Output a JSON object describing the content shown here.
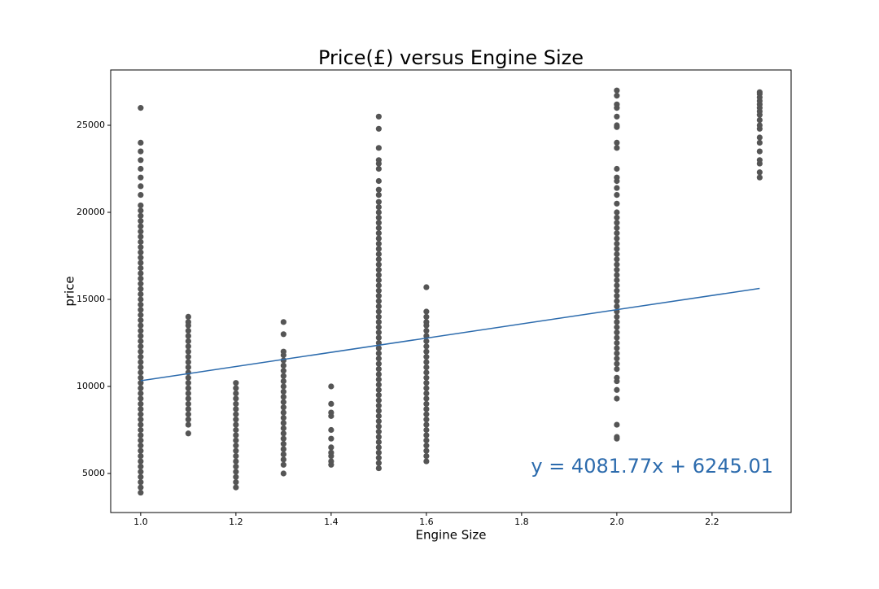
{
  "chart_data": {
    "type": "scatter",
    "title": "Price(£) versus Engine Size",
    "xlabel": "Engine Size",
    "ylabel": "price",
    "color": "#555555",
    "xlim": [
      0.937,
      2.366
    ],
    "ylim": [
      2757,
      28178
    ],
    "xticks": [
      {
        "value": 1,
        "label": "1.0"
      },
      1.2,
      1.4,
      1.6,
      1.8,
      {
        "value": 2,
        "label": "2.0"
      },
      2.2
    ],
    "yticks": [
      5000,
      10000,
      15000,
      20000,
      25000
    ],
    "grid": false,
    "series": [
      {
        "x": [
          1,
          1,
          1,
          1,
          1,
          1,
          1,
          1,
          1,
          1,
          1,
          1,
          1,
          1,
          1,
          1,
          1,
          1,
          1,
          1,
          1,
          1,
          1,
          1,
          1,
          1,
          1,
          1,
          1,
          1,
          1,
          1,
          1,
          1,
          1,
          1,
          1,
          1,
          1,
          1,
          1,
          1,
          1,
          1,
          1,
          1,
          1,
          1,
          1,
          1,
          1,
          1,
          1,
          1,
          1,
          1,
          1,
          1,
          1,
          1,
          1,
          1,
          1,
          1
        ],
        "values": [
          3900,
          4200,
          4500,
          4800,
          5100,
          5400,
          5700,
          6000,
          6300,
          6600,
          6900,
          7200,
          7500,
          7800,
          8100,
          8400,
          8700,
          9000,
          9300,
          9600,
          9900,
          10200,
          10500,
          10800,
          11100,
          11400,
          11700,
          12000,
          12300,
          12600,
          12900,
          13200,
          13500,
          13800,
          14100,
          14400,
          14700,
          15000,
          15300,
          15600,
          15900,
          16200,
          16500,
          16800,
          17100,
          17400,
          17700,
          18000,
          18300,
          18600,
          18900,
          19200,
          19500,
          19800,
          20100,
          20400,
          21000,
          21500,
          22000,
          22500,
          23000,
          23500,
          24000,
          26000
        ]
      },
      {
        "x": [
          1.1,
          1.1,
          1.1,
          1.1,
          1.1,
          1.1,
          1.1,
          1.1,
          1.1,
          1.1,
          1.1,
          1.1,
          1.1,
          1.1,
          1.1,
          1.1,
          1.1,
          1.1,
          1.1,
          1.1,
          1.1,
          1.1,
          1.1
        ],
        "values": [
          7300,
          7800,
          8100,
          8400,
          8700,
          9000,
          9300,
          9600,
          9900,
          10200,
          10500,
          10800,
          11100,
          11400,
          11700,
          12000,
          12300,
          12600,
          12900,
          13200,
          13500,
          13700,
          14000
        ]
      },
      {
        "x": [
          1.2,
          1.2,
          1.2,
          1.2,
          1.2,
          1.2,
          1.2,
          1.2,
          1.2,
          1.2,
          1.2,
          1.2,
          1.2,
          1.2,
          1.2,
          1.2,
          1.2,
          1.2,
          1.2,
          1.2,
          1.2
        ],
        "values": [
          4200,
          4500,
          4800,
          5100,
          5400,
          5700,
          6000,
          6300,
          6600,
          6900,
          7200,
          7500,
          7800,
          8100,
          8400,
          8700,
          9000,
          9300,
          9600,
          9900,
          10200
        ]
      },
      {
        "x": [
          1.3,
          1.3,
          1.3,
          1.3,
          1.3,
          1.3,
          1.3,
          1.3,
          1.3,
          1.3,
          1.3,
          1.3,
          1.3,
          1.3,
          1.3,
          1.3,
          1.3,
          1.3,
          1.3,
          1.3,
          1.3,
          1.3,
          1.3,
          1.3,
          1.3,
          1.3
        ],
        "values": [
          5000,
          5500,
          5800,
          6100,
          6400,
          6700,
          7000,
          7300,
          7600,
          7900,
          8200,
          8500,
          8800,
          9100,
          9400,
          9700,
          10000,
          10300,
          10600,
          10900,
          11200,
          11500,
          11800,
          12000,
          13000,
          13700
        ]
      },
      {
        "x": [
          1.4,
          1.4,
          1.4,
          1.4,
          1.4,
          1.4,
          1.4,
          1.4,
          1.4,
          1.4,
          1.4
        ],
        "values": [
          5500,
          5700,
          6000,
          6200,
          6500,
          7000,
          7500,
          8300,
          8500,
          9000,
          10000
        ]
      },
      {
        "x": [
          1.5,
          1.5,
          1.5,
          1.5,
          1.5,
          1.5,
          1.5,
          1.5,
          1.5,
          1.5,
          1.5,
          1.5,
          1.5,
          1.5,
          1.5,
          1.5,
          1.5,
          1.5,
          1.5,
          1.5,
          1.5,
          1.5,
          1.5,
          1.5,
          1.5,
          1.5,
          1.5,
          1.5,
          1.5,
          1.5,
          1.5,
          1.5,
          1.5,
          1.5,
          1.5,
          1.5,
          1.5,
          1.5,
          1.5,
          1.5,
          1.5,
          1.5,
          1.5,
          1.5,
          1.5,
          1.5,
          1.5,
          1.5,
          1.5,
          1.5,
          1.5,
          1.5,
          1.5,
          1.5,
          1.5,
          1.5,
          1.5,
          1.5,
          1.5,
          1.5,
          1.5
        ],
        "values": [
          5300,
          5600,
          5900,
          6200,
          6500,
          6800,
          7100,
          7400,
          7700,
          8000,
          8300,
          8600,
          8900,
          9200,
          9500,
          9800,
          10100,
          10400,
          10700,
          11000,
          11300,
          11600,
          11900,
          12200,
          12500,
          12800,
          13100,
          13400,
          13700,
          14000,
          14300,
          14600,
          14900,
          15200,
          15500,
          15800,
          16100,
          16400,
          16700,
          17000,
          17300,
          17600,
          17900,
          18200,
          18500,
          18800,
          19100,
          19400,
          19700,
          20000,
          20300,
          20600,
          21000,
          21300,
          21800,
          22500,
          22800,
          23000,
          23700,
          24800,
          25500
        ]
      },
      {
        "x": [
          1.6,
          1.6,
          1.6,
          1.6,
          1.6,
          1.6,
          1.6,
          1.6,
          1.6,
          1.6,
          1.6,
          1.6,
          1.6,
          1.6,
          1.6,
          1.6,
          1.6,
          1.6,
          1.6,
          1.6,
          1.6,
          1.6,
          1.6,
          1.6,
          1.6,
          1.6,
          1.6,
          1.6,
          1.6,
          1.6,
          1.6
        ],
        "values": [
          5700,
          6000,
          6300,
          6600,
          6900,
          7200,
          7500,
          7800,
          8100,
          8400,
          8700,
          9000,
          9300,
          9600,
          9900,
          10200,
          10500,
          10800,
          11100,
          11400,
          11700,
          12000,
          12300,
          12600,
          12900,
          13200,
          13500,
          13700,
          14000,
          14300,
          15700
        ]
      },
      {
        "x": [
          2,
          2,
          2,
          2,
          2,
          2,
          2,
          2,
          2,
          2,
          2,
          2,
          2,
          2,
          2,
          2,
          2,
          2,
          2,
          2,
          2,
          2,
          2,
          2,
          2,
          2,
          2,
          2,
          2,
          2,
          2,
          2,
          2,
          2,
          2,
          2,
          2,
          2,
          2,
          2,
          2,
          2,
          2,
          2,
          2,
          2,
          2,
          2,
          2,
          2,
          2,
          2,
          2
        ],
        "values": [
          7000,
          7100,
          7800,
          9300,
          9800,
          10300,
          10500,
          11000,
          11300,
          11600,
          11900,
          12200,
          12500,
          12800,
          13100,
          13400,
          13700,
          14000,
          14300,
          14600,
          14900,
          15200,
          15500,
          15800,
          16100,
          16400,
          16700,
          17000,
          17300,
          17600,
          17900,
          18200,
          18500,
          18800,
          19100,
          19400,
          19700,
          20000,
          20500,
          21000,
          21400,
          21800,
          22000,
          22500,
          23700,
          24000,
          24900,
          25000,
          25500,
          26000,
          26200,
          26700,
          27000
        ]
      },
      {
        "x": [
          2.3,
          2.3,
          2.3,
          2.3,
          2.3,
          2.3,
          2.3,
          2.3,
          2.3,
          2.3,
          2.3,
          2.3,
          2.3,
          2.3,
          2.3,
          2.3,
          2.3,
          2.3
        ],
        "values": [
          22000,
          22300,
          22800,
          23000,
          23500,
          24000,
          24300,
          24800,
          25000,
          25300,
          25600,
          25800,
          26000,
          26200,
          26400,
          26600,
          26800,
          26900
        ]
      }
    ],
    "fit": {
      "type": "line",
      "color": "#2c6bad",
      "x": [
        1,
        2.3
      ],
      "values": [
        10327,
        15633
      ],
      "annotation": "y = 4081.77x + 6245.01"
    }
  }
}
